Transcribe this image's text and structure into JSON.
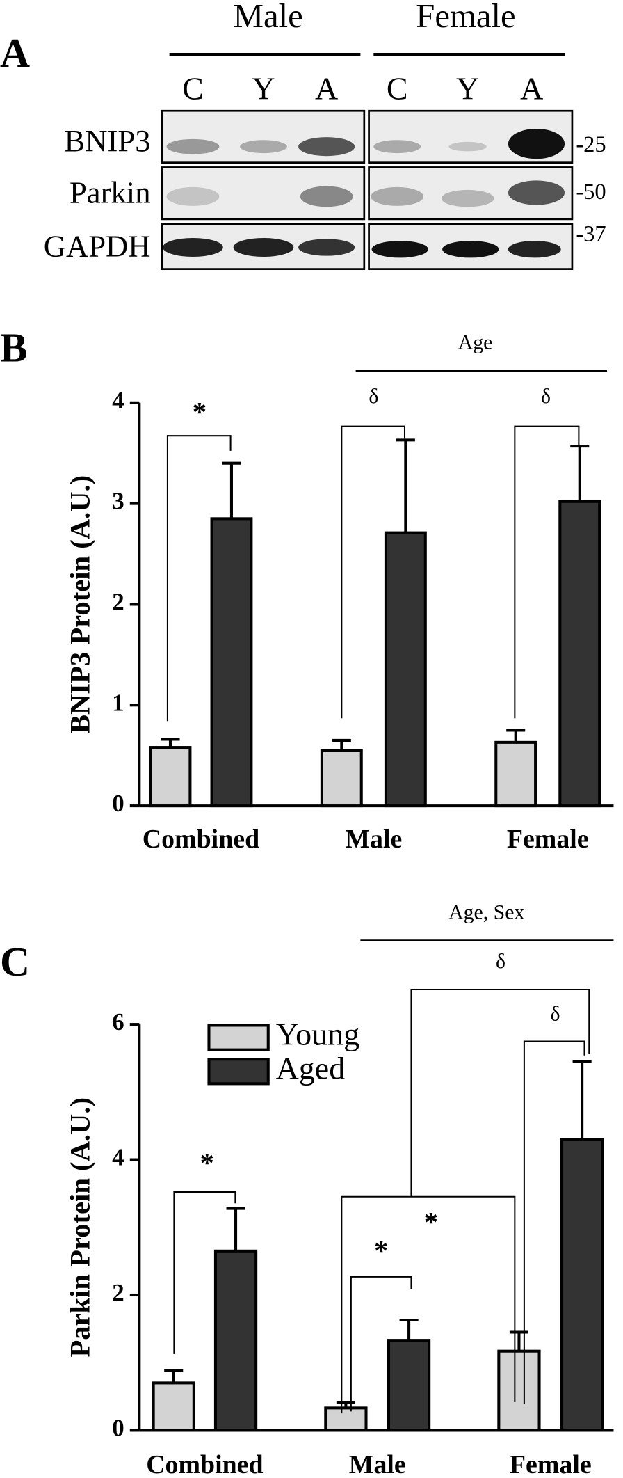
{
  "panel_a": {
    "label": "A",
    "groups": [
      "Male",
      "Female"
    ],
    "lanes": [
      "C",
      "Y",
      "A",
      "C",
      "Y",
      "A"
    ],
    "proteins": [
      "BNIP3",
      "Parkin",
      "GAPDH"
    ],
    "markers": [
      "-25",
      "-50",
      "-37"
    ]
  },
  "chart_data": [
    {
      "type": "bar",
      "panel": "B",
      "ylabel": "BNIP3 Protein (A.U.)",
      "categories": [
        "Combined",
        "Male",
        "Female"
      ],
      "series": [
        {
          "color": "#d3d3d3",
          "values": [
            0.58,
            0.55,
            0.63
          ],
          "errors": [
            0.08,
            0.1,
            0.12
          ]
        },
        {
          "color": "#333333",
          "values": [
            2.85,
            2.71,
            3.02
          ],
          "errors": [
            0.55,
            0.92,
            0.55
          ]
        }
      ],
      "ylim": [
        0,
        4
      ],
      "yticks": [
        0,
        1,
        2,
        3,
        4
      ],
      "factor_label": "Age",
      "significance": [
        "*",
        "δ",
        "δ"
      ]
    },
    {
      "type": "bar",
      "panel": "C",
      "ylabel": "Parkin Protein (A.U.)",
      "categories": [
        "Combined",
        "Male",
        "Female"
      ],
      "series": [
        {
          "name": "Young",
          "color": "#d3d3d3",
          "values": [
            0.7,
            0.33,
            1.17
          ],
          "errors": [
            0.18,
            0.08,
            0.28
          ]
        },
        {
          "name": "Aged",
          "color": "#333333",
          "values": [
            2.65,
            1.33,
            4.3
          ],
          "errors": [
            0.63,
            0.3,
            1.15
          ]
        }
      ],
      "ylim": [
        0,
        6
      ],
      "yticks": [
        0,
        2,
        4,
        6
      ],
      "factor_label": "Age,  Sex",
      "significance": [
        "*",
        "*",
        "*",
        "δ",
        "δ"
      ]
    }
  ]
}
